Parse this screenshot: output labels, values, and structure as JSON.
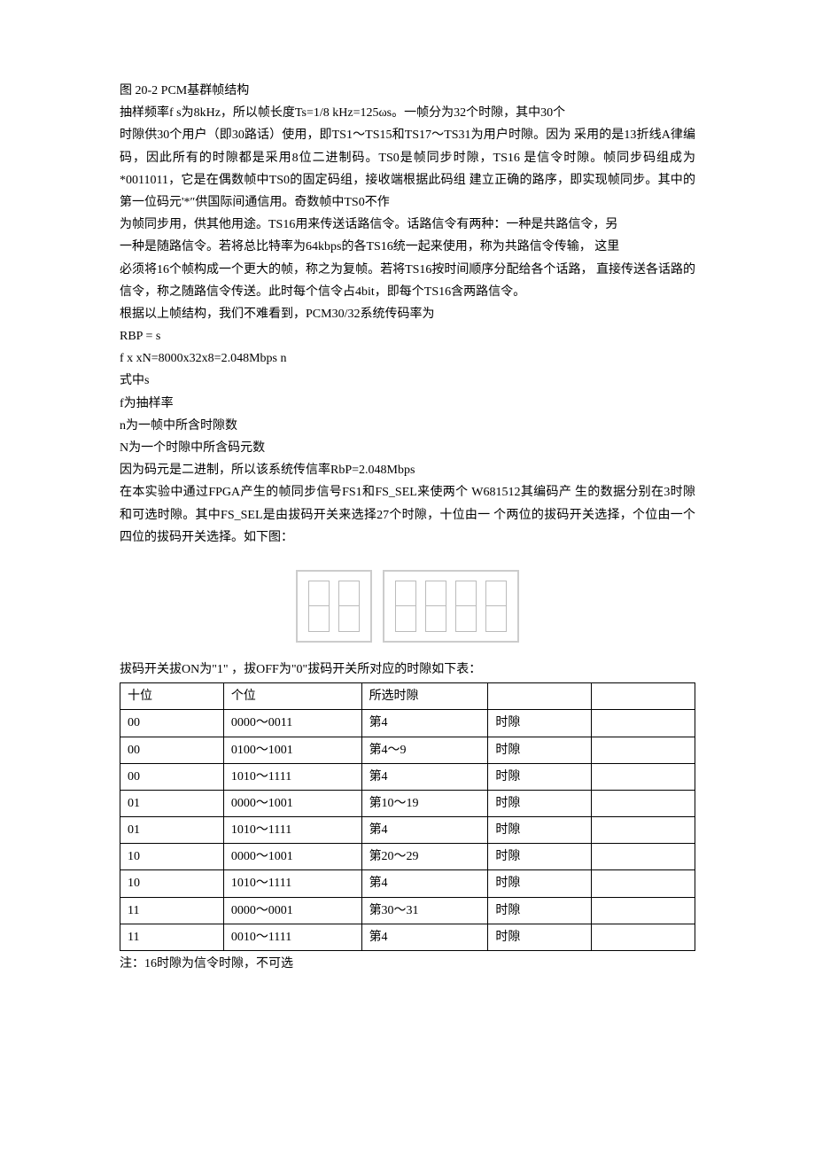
{
  "paragraphs": {
    "p1": "图 20-2 PCM基群帧结构",
    "p2": "抽样频率f s为8kHz，所以帧长度Ts=1/8 kHz=125ωs。一帧分为32个时隙，其中30个",
    "p3": "时隙供30个用户（即30路话）使用，即TS1～TS15和TS17～TS31为用户时隙。因为 采用的是13折线A律编码，因此所有的时隙都是采用8位二进制码。TS0是帧同步时隙，TS16 是信令时隙。帧同步码组成为*0011011，它是在偶数帧中TS0的固定码组，接收端根据此码组 建立正确的路序，即实现帧同步。其中的第一位码元'*″供国际间通信用。奇数帧中TS0不作",
    "p4": "为帧同步用，供其他用途。TS16用来传送话路信令。话路信令有两种：一种是共路信令，另",
    "p5": "一种是随路信令。若将总比特率为64kbps的各TS16统一起来使用，称为共路信令传输， 这里",
    "p6": "必须将16个帧构成一个更大的帧，称之为复帧。若将TS16按时间顺序分配给各个话路， 直接传送各话路的信令，称之随路信令传送。此时每个信令占4bit，即每个TS16含两路信令。",
    "p7": "根据以上帧结构，我们不难看到，PCM30/32系统传码率为",
    "p8": "RBP = s",
    "p9": "f x xN=8000x32x8=2.048Mbps n",
    "p10": "式中s",
    "p11": "f为抽样率",
    "p12": "n为一帧中所含时隙数",
    "p13": "N为一个时隙中所含码元数",
    "p14": "因为码元是二进制，所以该系统传信率RbP=2.048Mbps",
    "p15": "在本实验中通过FPGA产生的帧同步信号FS1和FS_SEL来使两个 W681512其编码产 生的数据分别在3时隙和可选时隙。其中FS_SEL是由拔码开关来选择27个时隙，十位由一 个两位的拔码开关选择，个位由一个四位的拔码开关选择。如下图："
  },
  "diagram": {
    "box1_switches": 2,
    "box2_switches": 4,
    "border_color": "#cccccc"
  },
  "table_caption": "拔码开关拔ON为\"1\" ，拔OFF为\"0\"拔码开关所对应的时隙如下表：",
  "table": {
    "headers": [
      "十位",
      "个位",
      "所选时隙",
      "",
      ""
    ],
    "rows": [
      [
        "00",
        "0000～0011",
        "第4",
        "时隙",
        ""
      ],
      [
        "00",
        "0100～1001",
        "第4～9",
        "时隙",
        ""
      ],
      [
        "00",
        "1010～1111",
        "第4",
        "时隙",
        ""
      ],
      [
        "01",
        "0000～1001",
        "第10～19",
        "时隙",
        ""
      ],
      [
        "01",
        "1010～1111",
        "第4",
        "时隙",
        ""
      ],
      [
        "10",
        "0000～1001",
        "第20～29",
        "时隙",
        ""
      ],
      [
        "10",
        "1010～1111",
        "第4",
        "时隙",
        ""
      ],
      [
        "11",
        "0000～0001",
        "第30～31",
        "时隙",
        ""
      ],
      [
        "11",
        "0010～1111",
        "第4",
        "时隙",
        ""
      ]
    ],
    "col_widths": [
      "18%",
      "24%",
      "22%",
      "18%",
      "18%"
    ]
  },
  "note": "注：16时隙为信令时隙，不可选"
}
